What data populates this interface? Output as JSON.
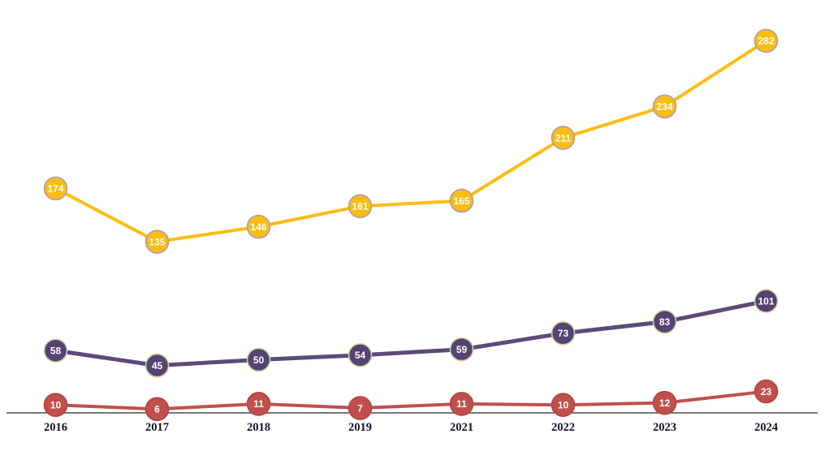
{
  "chart_data": {
    "type": "line",
    "title": "",
    "xlabel": "",
    "ylabel": "",
    "grid": false,
    "legend": "none",
    "data_labels": true,
    "categories": [
      "2016",
      "2017",
      "2018",
      "2019",
      "2021",
      "2022",
      "2023",
      "2024"
    ],
    "series": [
      {
        "name": "gold-series",
        "values": [
          174,
          135,
          146,
          161,
          165,
          211,
          234,
          282
        ],
        "line_color": "#FBBD12",
        "marker_fill": "#FBBD12",
        "marker_stroke": "#A89DB8",
        "label_color": "#FFFFFF"
      },
      {
        "name": "purple-series",
        "values": [
          58,
          45,
          50,
          54,
          59,
          73,
          83,
          101
        ],
        "line_color": "#5B4A7A",
        "marker_fill": "#564274",
        "marker_stroke": "#C4D79B",
        "label_color": "#FFFFFF"
      },
      {
        "name": "red-series",
        "values": [
          10,
          6,
          11,
          7,
          11,
          10,
          12,
          23
        ],
        "line_color": "#C0504D",
        "marker_fill": "#C0504D",
        "marker_stroke": "#B0453F",
        "label_color": "#FFFFFF"
      }
    ],
    "axis_line_color": "#262626",
    "tick_label_color": "#14142B"
  }
}
